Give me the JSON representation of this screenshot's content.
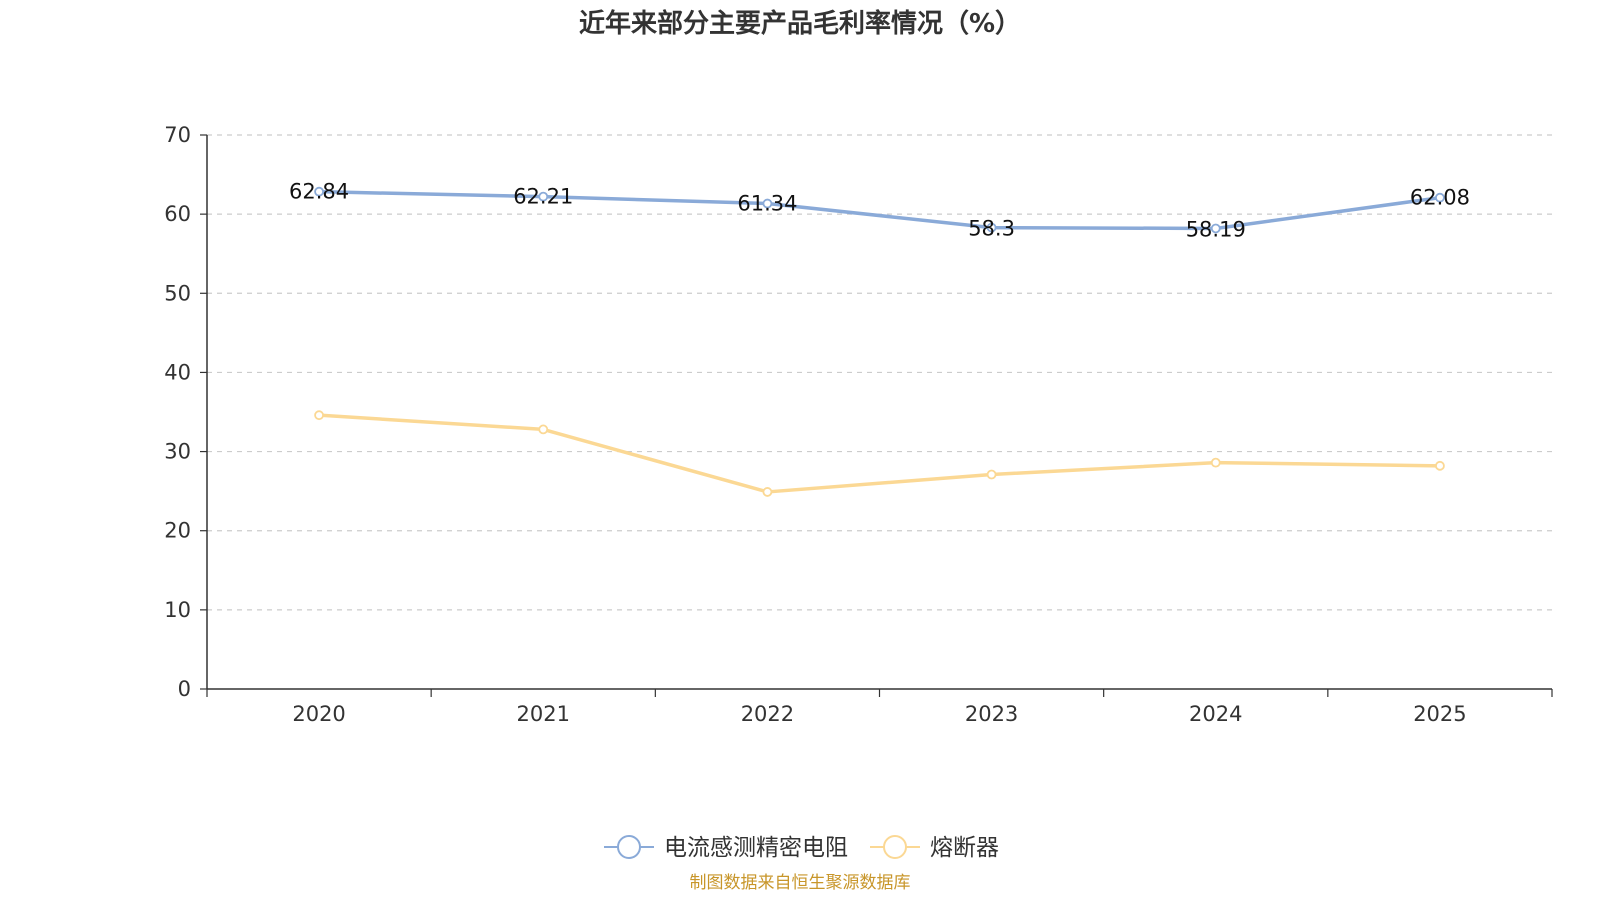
{
  "chart_data": {
    "type": "line",
    "title": "近年来部分主要产品毛利率情况（%）",
    "xlabel": "",
    "ylabel": "",
    "categories": [
      "2020",
      "2021",
      "2022",
      "2023",
      "2024",
      "2025"
    ],
    "ylim": [
      0,
      70
    ],
    "yticks": [
      0,
      10,
      20,
      30,
      40,
      50,
      60,
      70
    ],
    "grid": true,
    "legend_position": "bottom-center",
    "series": [
      {
        "name": "电流感测精密电阻",
        "color": "#8aaad8",
        "values": [
          62.84,
          62.21,
          61.34,
          58.3,
          58.19,
          62.08
        ],
        "labels": [
          "62.84",
          "62.21",
          "61.34",
          "58.3",
          "58.19",
          "62.08"
        ],
        "show_labels": true
      },
      {
        "name": "熔断器",
        "color": "#fbd894",
        "values": [
          34.6,
          32.8,
          24.9,
          27.1,
          28.6,
          28.2
        ],
        "show_labels": false
      }
    ],
    "source_note": "制图数据来自恒生聚源数据库",
    "source_color": "#c8962a"
  }
}
